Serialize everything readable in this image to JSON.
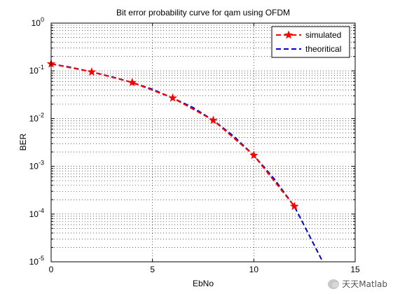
{
  "chart_data": {
    "type": "line",
    "title": "Bit error probability curve for qam using OFDM",
    "xlabel": "EbNo",
    "ylabel": "BER",
    "xlim": [
      0,
      15
    ],
    "ylim": [
      1e-05,
      1
    ],
    "yscale": "log",
    "grid": true,
    "legend_position": "top-right",
    "x_ticks": [
      0,
      5,
      10,
      15
    ],
    "y_tick_exponents": [
      0,
      -1,
      -2,
      -3,
      -4,
      -5
    ],
    "y_tick_base": "10",
    "series": [
      {
        "name": "simulated",
        "color": "#ff0000",
        "line_style": "dashed",
        "marker": "star",
        "x": [
          0,
          2,
          4,
          6,
          8,
          10,
          12
        ],
        "y": [
          0.14,
          0.095,
          0.057,
          0.027,
          0.0092,
          0.0017,
          0.000145
        ]
      },
      {
        "name": "theoritical",
        "color": "#0000cc",
        "line_style": "dashed",
        "marker": "none",
        "x": [
          0,
          1,
          2,
          3,
          4,
          5,
          6,
          7,
          8,
          9,
          10,
          11,
          12,
          13,
          13.4
        ],
        "y": [
          0.14,
          0.118,
          0.095,
          0.075,
          0.057,
          0.041,
          0.027,
          0.017,
          0.0092,
          0.0043,
          0.0017,
          0.00055,
          0.000145,
          2.15e-05,
          1e-05
        ]
      }
    ]
  },
  "watermark": {
    "text": "天天Matlab"
  }
}
